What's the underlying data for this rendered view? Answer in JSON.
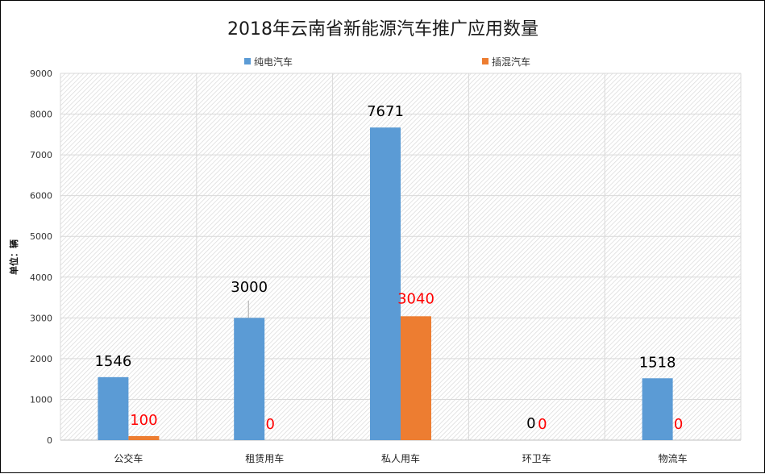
{
  "chart_data": {
    "type": "bar",
    "title": "2018年云南省新能源汽车推广应用数量",
    "ylabel": "单位：辆",
    "xlabel": "",
    "ylim": [
      0,
      9000
    ],
    "yticks": [
      "0",
      "1000",
      "2000",
      "3000",
      "4000",
      "5000",
      "6000",
      "7000",
      "8000",
      "9000"
    ],
    "grid": true,
    "legend_position": "top",
    "categories": [
      "公交车",
      "租赁用车",
      "私人用车",
      "环卫车",
      "物流车"
    ],
    "series": [
      {
        "name": "纯电汽车",
        "color": "#5b9bd5",
        "label_color": "#000000",
        "values": [
          1546,
          3000,
          7671,
          0,
          1518
        ]
      },
      {
        "name": "插混汽车",
        "color": "#ed7d31",
        "label_color": "#ff0000",
        "values": [
          100,
          0,
          3040,
          0,
          0
        ]
      }
    ],
    "data_labels": [
      [
        "1546",
        "3000",
        "7671",
        "0",
        "1518"
      ],
      [
        "100",
        "0",
        "3040",
        "0",
        "0"
      ]
    ]
  }
}
